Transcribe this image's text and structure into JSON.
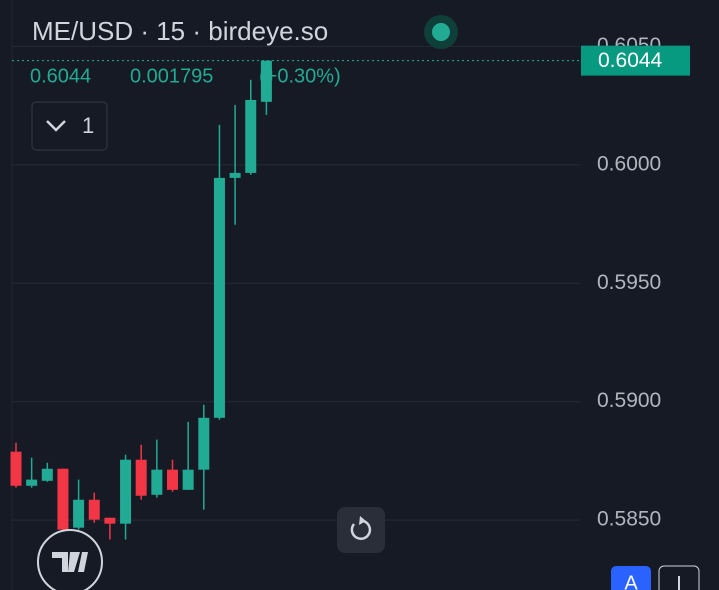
{
  "header": {
    "title": "ME/USD · 15 · birdeye.so",
    "legend": {
      "close": {
        "value": 0.6044,
        "label": "0.6044"
      },
      "change": {
        "value": 0.001795,
        "label": "0.001795"
      },
      "change_pct": {
        "value": 0.3,
        "label": "(+0.30%)"
      }
    },
    "indicators_toggle": "1",
    "scale_button": "A"
  },
  "chart_data": {
    "type": "candlestick",
    "categories": [
      null,
      null,
      null,
      null,
      null,
      null,
      null,
      null,
      null,
      null,
      null,
      null,
      null,
      null,
      null,
      null,
      null
    ],
    "open": [
      0.58789,
      0.58645,
      0.58666,
      0.58717,
      0.58468,
      0.58586,
      0.5851,
      0.58485,
      0.58755,
      0.58607,
      0.58713,
      0.58628,
      0.58713,
      0.58932,
      0.59945,
      0.59966,
      0.60266
    ],
    "high": [
      0.58827,
      0.58764,
      0.58742,
      0.58717,
      0.58671,
      0.58616,
      0.5851,
      0.58776,
      0.58818,
      0.5884,
      0.58755,
      0.58915,
      0.58987,
      0.60169,
      0.60253,
      0.60359,
      0.6044
    ],
    "low": [
      0.58637,
      0.58637,
      0.58662,
      0.58396,
      0.5846,
      0.58489,
      0.58418,
      0.58418,
      0.58586,
      0.58595,
      0.5862,
      0.58628,
      0.58544,
      0.58924,
      0.59747,
      0.59958,
      0.60211
    ],
    "close": [
      0.58645,
      0.58671,
      0.58717,
      0.5846,
      0.58586,
      0.58502,
      0.58485,
      0.58755,
      0.58603,
      0.58713,
      0.58628,
      0.58713,
      0.58932,
      0.59945,
      0.59966,
      0.60274,
      0.6044
    ],
    "up_color": "#22ab94",
    "down_color": "#f23645",
    "ylim": [
      0.58205,
      0.60696
    ],
    "yticks": [
      {
        "value": 0.605,
        "label": "0.6050"
      },
      {
        "value": 0.6,
        "label": "0.6000"
      },
      {
        "value": 0.595,
        "label": "0.5950"
      },
      {
        "value": 0.59,
        "label": "0.5900"
      },
      {
        "value": 0.585,
        "label": "0.5850"
      }
    ],
    "last_price": {
      "value": 0.6044,
      "label": "0.6044"
    },
    "grid": true
  }
}
